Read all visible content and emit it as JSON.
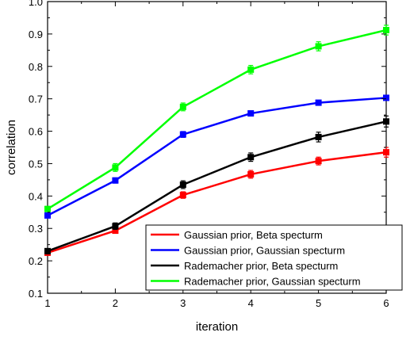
{
  "chart_data": {
    "type": "line",
    "title": "",
    "xlabel": "iteration",
    "ylabel": "correlation",
    "x": [
      1,
      2,
      3,
      4,
      5,
      6
    ],
    "xlim": [
      1,
      6
    ],
    "ylim": [
      0.1,
      1.0
    ],
    "x_ticks": [
      "1",
      "2",
      "3",
      "4",
      "5",
      "6"
    ],
    "y_ticks": [
      "0.1",
      "0.2",
      "0.3",
      "0.4",
      "0.5",
      "0.6",
      "0.7",
      "0.8",
      "0.9",
      "1.0"
    ],
    "grid": false,
    "legend_position": "bottom-right",
    "series": [
      {
        "name": "Gaussian prior, Beta specturm",
        "color": "#ff0000",
        "values": [
          0.225,
          0.293,
          0.403,
          0.467,
          0.508,
          0.535
        ],
        "errors": [
          0.006,
          0.008,
          0.01,
          0.012,
          0.012,
          0.015
        ]
      },
      {
        "name": "Gaussian prior, Gaussian specturm",
        "color": "#0000ff",
        "values": [
          0.34,
          0.448,
          0.59,
          0.655,
          0.688,
          0.703
        ],
        "errors": [
          0.006,
          0.008,
          0.009,
          0.007,
          0.006,
          0.005
        ]
      },
      {
        "name": "Rademacher prior, Beta specturm",
        "color": "#000000",
        "values": [
          0.23,
          0.307,
          0.435,
          0.52,
          0.582,
          0.63
        ],
        "errors": [
          0.008,
          0.01,
          0.012,
          0.013,
          0.015,
          0.017
        ]
      },
      {
        "name": "Rademacher prior, Gaussian specturm",
        "color": "#00ff00",
        "values": [
          0.36,
          0.488,
          0.675,
          0.79,
          0.862,
          0.912
        ],
        "errors": [
          0.008,
          0.012,
          0.012,
          0.013,
          0.014,
          0.015
        ]
      }
    ]
  }
}
